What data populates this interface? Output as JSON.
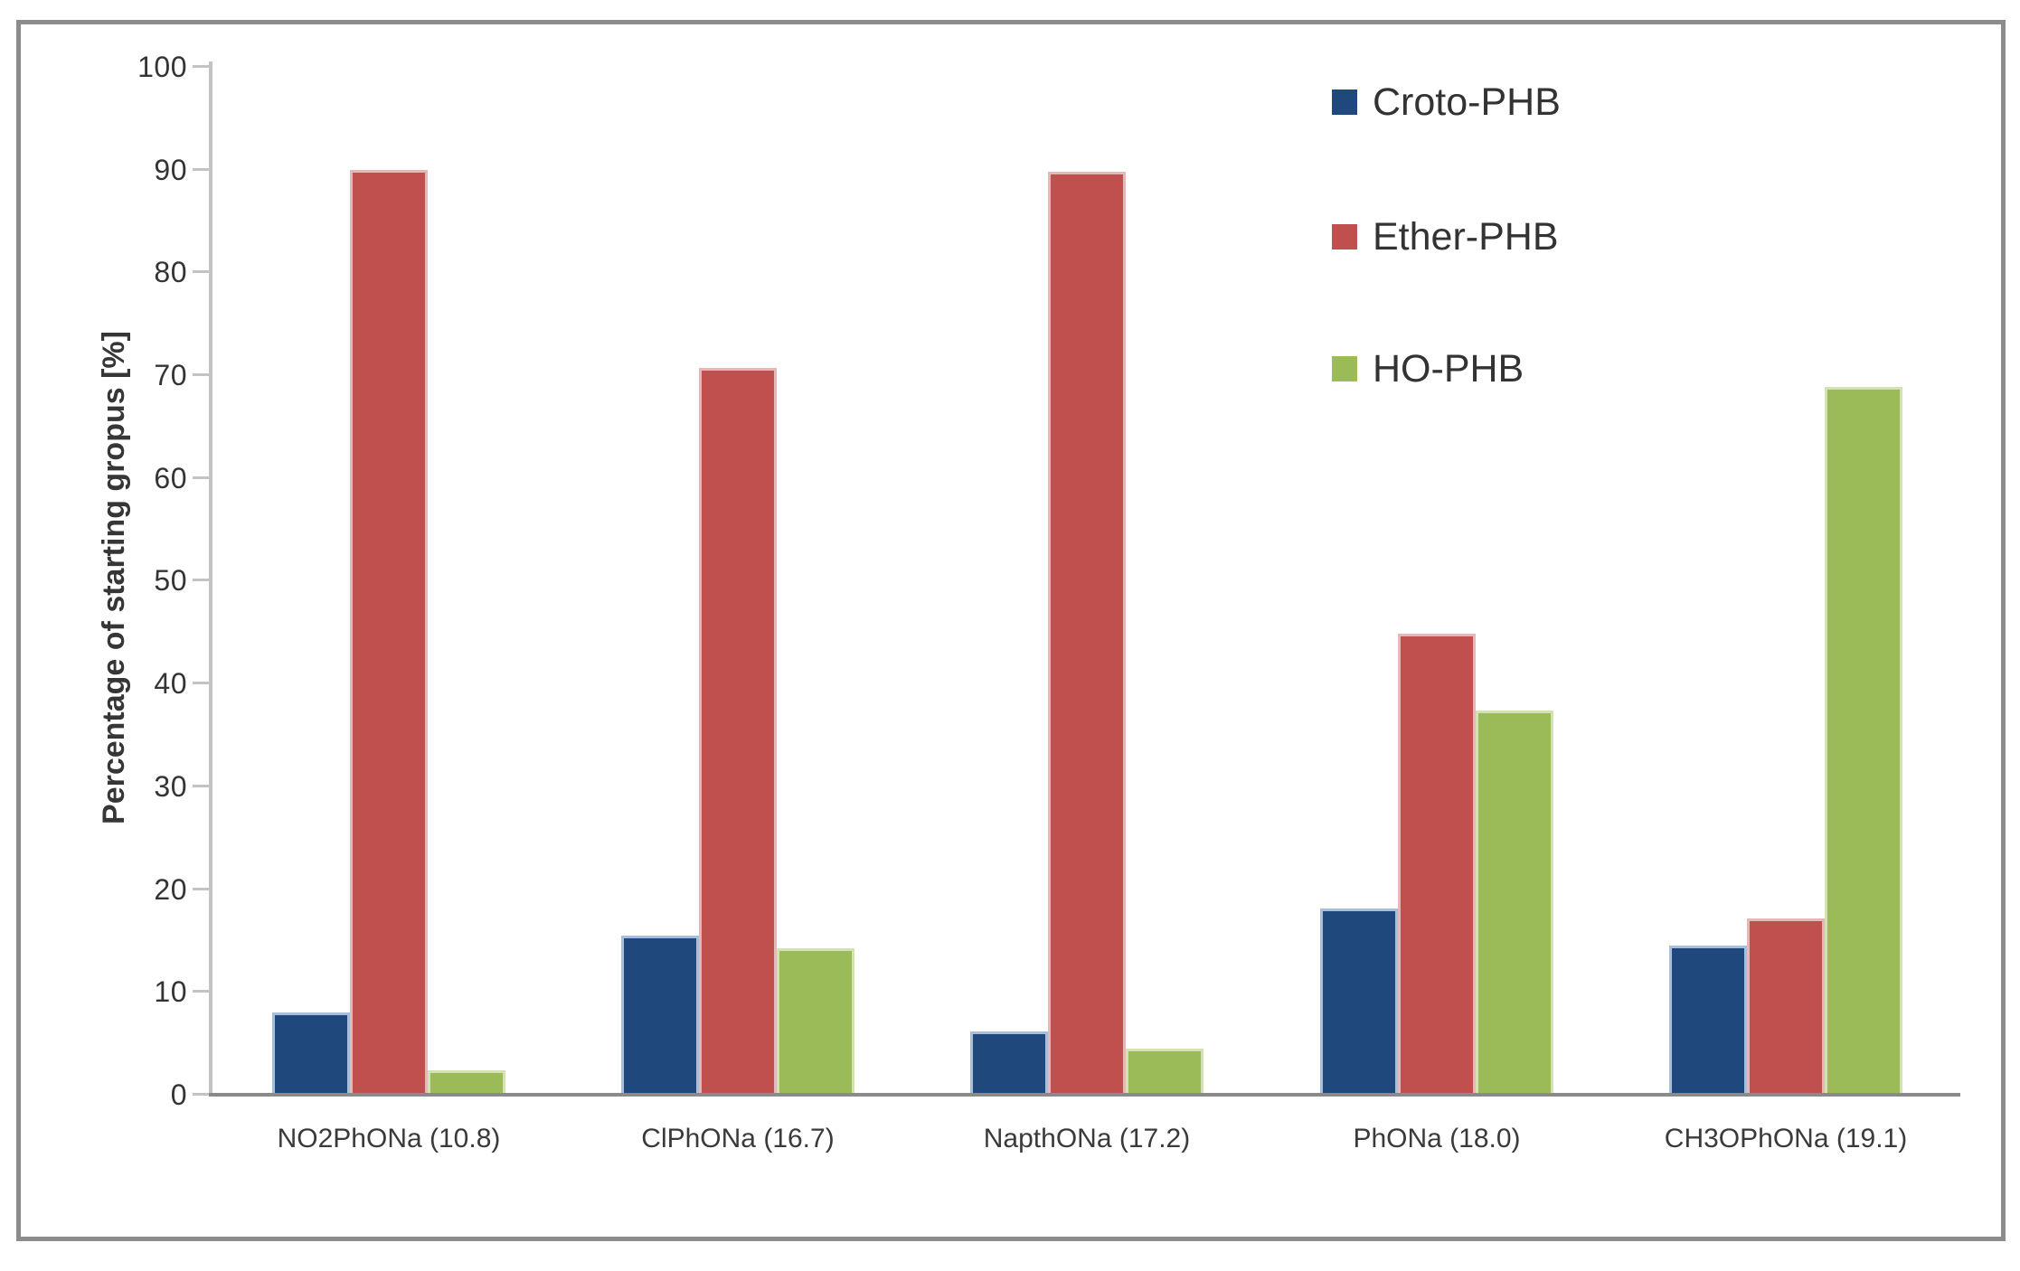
{
  "chart_data": {
    "type": "bar",
    "title": "",
    "xlabel": "",
    "ylabel": "Percentage of starting gropus [%]",
    "ylim": [
      0,
      100
    ],
    "ytick_step": 10,
    "grid": false,
    "legend_position": "top-right-inside",
    "categories": [
      "NO2PhONa (10.8)",
      "ClPhONa (16.7)",
      "NapthONa (17.2)",
      "PhONa (18.0)",
      "CH3OPhONa (19.1)"
    ],
    "series": [
      {
        "name": "Croto-PHB",
        "color": "#1f497d",
        "edge_color": "#a7bfdc",
        "values": [
          7.8,
          15.3,
          6.0,
          17.9,
          14.3
        ]
      },
      {
        "name": "Ether-PHB",
        "color": "#c0504d",
        "edge_color": "#e3b8b7",
        "values": [
          89.8,
          70.5,
          89.6,
          44.7,
          17.0
        ]
      },
      {
        "name": "HO-PHB",
        "color": "#9bbb59",
        "edge_color": "#d3e2b2",
        "values": [
          2.2,
          14.1,
          4.3,
          37.2,
          68.7
        ]
      }
    ],
    "colors": {
      "axis_line": "#c3c3c3",
      "baseline": "#8a8a8a",
      "frame_border": "#8c8c8c",
      "tick_text": "#343434",
      "label_text": "#3a3a3a",
      "legend_text": "#333333",
      "background": "#ffffff"
    }
  }
}
